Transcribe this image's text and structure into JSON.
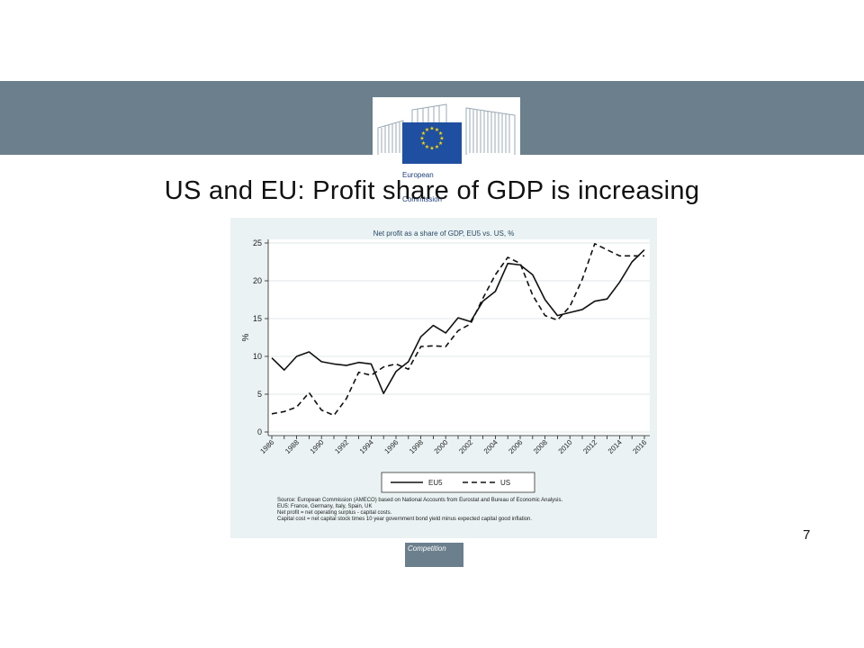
{
  "slide": {
    "title": "US and EU: Profit share of GDP is increasing",
    "page_number": "7",
    "footer_tag": "Competition",
    "logo_text": [
      "European",
      "Commission"
    ],
    "colors": {
      "banner": "#6b7f8c",
      "flag": "#1f4fa0",
      "stars": "#ffd700",
      "chart_bg": "#eaf2f3"
    }
  },
  "chart_data": {
    "type": "line",
    "title": "Net profit as a share of GDP, EU5 vs. US, %",
    "xlabel": "",
    "ylabel": "%",
    "x": [
      1986,
      1987,
      1988,
      1989,
      1990,
      1991,
      1992,
      1993,
      1994,
      1995,
      1996,
      1997,
      1998,
      1999,
      2000,
      2001,
      2002,
      2003,
      2004,
      2005,
      2006,
      2007,
      2008,
      2009,
      2010,
      2011,
      2012,
      2013,
      2014,
      2015,
      2016
    ],
    "xticks": [
      "1986",
      "1988",
      "1990",
      "1992",
      "1994",
      "1996",
      "1998",
      "2000",
      "2002",
      "2004",
      "2006",
      "2008",
      "2010",
      "2012",
      "2014",
      "2016"
    ],
    "yticks": [
      "0",
      "5",
      "10",
      "15",
      "20",
      "25"
    ],
    "ylim": [
      0,
      25
    ],
    "xlim": [
      1986,
      2016
    ],
    "series": [
      {
        "name": "EU5",
        "style": "solid",
        "values": [
          9.8,
          8.2,
          10.0,
          10.6,
          9.3,
          9.0,
          8.8,
          9.2,
          9.0,
          5.1,
          8.0,
          9.3,
          12.6,
          14.1,
          13.1,
          15.1,
          14.6,
          17.3,
          18.6,
          22.3,
          22.1,
          20.8,
          17.5,
          15.4,
          15.8,
          16.2,
          17.3,
          17.6,
          19.8,
          22.5,
          24.1
        ]
      },
      {
        "name": "US",
        "style": "dashed",
        "values": [
          2.4,
          2.7,
          3.3,
          5.2,
          2.9,
          2.2,
          4.4,
          7.9,
          7.5,
          8.6,
          9.0,
          8.3,
          11.3,
          11.4,
          11.3,
          13.4,
          14.3,
          17.7,
          20.8,
          23.1,
          22.3,
          18.1,
          15.4,
          14.8,
          16.6,
          20.2,
          24.9,
          24.1,
          23.3,
          23.3,
          23.3
        ]
      }
    ],
    "legend": {
      "placement": "bottom",
      "items": [
        "EU5",
        "US"
      ]
    },
    "source_notes": [
      "Source: European Commission (AMECO) based on National Accounts from Eurostat and Bureau of Economic Analysis.",
      "EU5: France, Germany, Italy, Spain, UK",
      "Net profit = net operating surplus - capital costs.",
      "Capital cost = net capital stock times 10 year government bond yield minus expected capital good inflation."
    ],
    "grid": true
  }
}
